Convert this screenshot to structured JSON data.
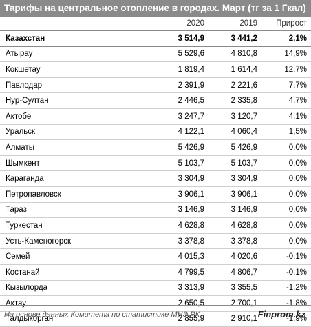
{
  "title": "Тарифы на центральное отопление в городах. Март (тг за 1 Гкал)",
  "headers": {
    "city": "",
    "y2020": "2020",
    "y2019": "2019",
    "growth": "Прирост"
  },
  "rows": [
    {
      "city": "Казахстан",
      "v2020": "3 514,9",
      "v2019": "3 441,2",
      "growth": "2,1%"
    },
    {
      "city": "Атырау",
      "v2020": "5 529,6",
      "v2019": "4 810,8",
      "growth": "14,9%"
    },
    {
      "city": "Кокшетау",
      "v2020": "1 819,4",
      "v2019": "1 614,4",
      "growth": "12,7%"
    },
    {
      "city": "Павлодар",
      "v2020": "2 391,9",
      "v2019": "2 221,6",
      "growth": "7,7%"
    },
    {
      "city": "Нур-Султан",
      "v2020": "2 446,5",
      "v2019": "2 335,8",
      "growth": "4,7%"
    },
    {
      "city": "Актобе",
      "v2020": "3 247,7",
      "v2019": "3 120,7",
      "growth": "4,1%"
    },
    {
      "city": "Уральск",
      "v2020": "4 122,1",
      "v2019": "4 060,4",
      "growth": "1,5%"
    },
    {
      "city": "Алматы",
      "v2020": "5 426,9",
      "v2019": "5 426,9",
      "growth": "0,0%"
    },
    {
      "city": "Шымкент",
      "v2020": "5 103,7",
      "v2019": "5 103,7",
      "growth": "0,0%"
    },
    {
      "city": "Караганда",
      "v2020": "3 304,9",
      "v2019": "3 304,9",
      "growth": "0,0%"
    },
    {
      "city": "Петропавловск",
      "v2020": "3 906,1",
      "v2019": "3 906,1",
      "growth": "0,0%"
    },
    {
      "city": "Тараз",
      "v2020": "3 146,9",
      "v2019": "3 146,9",
      "growth": "0,0%"
    },
    {
      "city": "Туркестан",
      "v2020": "4 628,8",
      "v2019": "4 628,8",
      "growth": "0,0%"
    },
    {
      "city": "Усть-Каменогорск",
      "v2020": "3 378,8",
      "v2019": "3 378,8",
      "growth": "0,0%"
    },
    {
      "city": "Семей",
      "v2020": "4 015,3",
      "v2019": "4 020,6",
      "growth": "-0,1%"
    },
    {
      "city": "Костанай",
      "v2020": "4 799,5",
      "v2019": "4 806,7",
      "growth": "-0,1%"
    },
    {
      "city": "Кызылорда",
      "v2020": "3 313,9",
      "v2019": "3 355,5",
      "growth": "-1,2%"
    },
    {
      "city": "Актау",
      "v2020": "2 650,5",
      "v2019": "2 700,1",
      "growth": "-1,8%"
    },
    {
      "city": "Талдыкорган",
      "v2020": "2 855,9",
      "v2019": "2 910,1",
      "growth": "-1,9%"
    }
  ],
  "footer": {
    "source": "На основе данных Комитета по статистике МНЭ РК",
    "brand": "Finprom.kz"
  }
}
